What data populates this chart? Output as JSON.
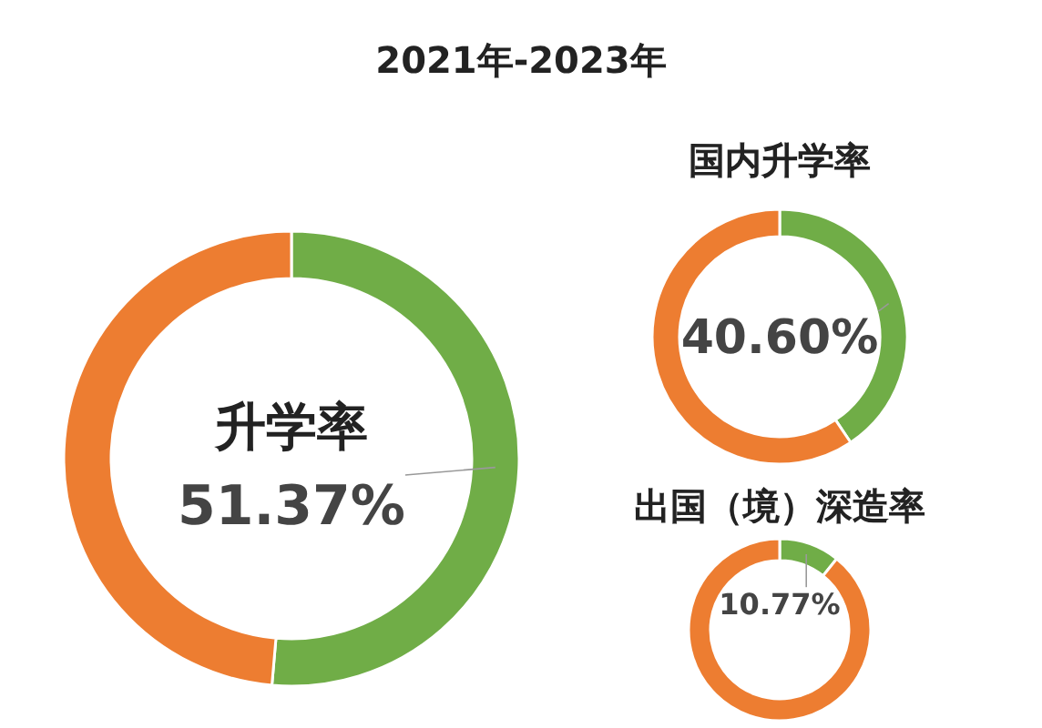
{
  "chart_data": [
    {
      "type": "donut",
      "title": "2021年-2023年",
      "subtitle": "升学率",
      "categories": [
        null,
        null
      ],
      "values": [
        51.37,
        48.63
      ],
      "colors": [
        "#70ad47",
        "#ed7d31"
      ],
      "value_labels": [
        "51.37%",
        null
      ]
    },
    {
      "type": "donut",
      "title": "国内升学率",
      "categories": [
        null,
        null
      ],
      "values": [
        40.6,
        59.4
      ],
      "colors": [
        "#70ad47",
        "#ed7d31"
      ],
      "value_labels": [
        "40.60%",
        null
      ]
    },
    {
      "type": "donut",
      "title": "出国（境）深造率",
      "categories": [
        null,
        null
      ],
      "values": [
        10.77,
        89.23
      ],
      "colors": [
        "#70ad47",
        "#ed7d31"
      ],
      "value_labels": [
        "10.77%",
        null
      ]
    }
  ]
}
